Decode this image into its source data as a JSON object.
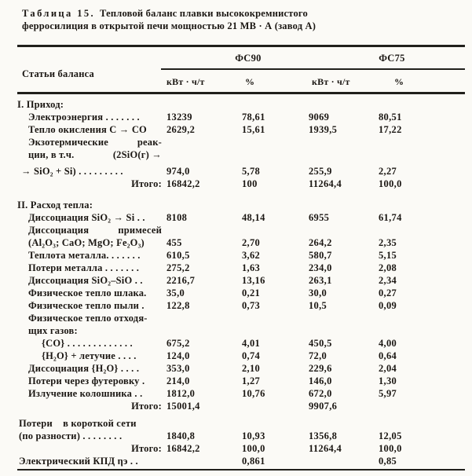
{
  "colors": {
    "paper": "#fbfaf6",
    "ink": "#1b1713"
  },
  "title": {
    "caption_label": "Таблица 15.",
    "line1": "Тепловой баланс плавки высококремнистого",
    "line2": "ферросилиция в открытой печи мощностью 21 МВ · А (завод А)"
  },
  "table": {
    "stub_header": "Статьи баланса",
    "col_groups": [
      "ФС90",
      "ФС75"
    ],
    "sub_headers": [
      "кВт · ч/т",
      "%",
      "кВт · ч/т",
      "%"
    ],
    "rows": [
      {
        "type": "section",
        "label": "I. Приход:"
      },
      {
        "type": "item",
        "label": "Электроэнергия . . . . . . .",
        "v1": "13239",
        "p1": "78,61",
        "v2": "9069",
        "p2": "80,51"
      },
      {
        "type": "item",
        "label": "Тепло окисления С → СО",
        "v1": "2629,2",
        "p1": "15,61",
        "v2": "1939,5",
        "p2": "17,22"
      },
      {
        "type": "item",
        "left": "Экзотермические",
        "right": "реак-"
      },
      {
        "type": "item",
        "left": "ции, в т.ч.",
        "right": "(2SiO(г) →"
      },
      {
        "type": "outdent",
        "label": "→ SiO₂ + Si) . . . . . . . . .",
        "v1": "974,0",
        "p1": "5,78",
        "v2": "255,9",
        "p2": "2,27"
      },
      {
        "type": "total",
        "label": "Итого:",
        "v1": "16842,2",
        "p1": "100",
        "v2": "11264,4",
        "p2": "100,0"
      },
      {
        "type": "section",
        "gap": "lg",
        "label": "II. Расход тепла:"
      },
      {
        "type": "item",
        "label": "Диссоциация SiO₂ → Si . .",
        "v1": "8108",
        "p1": "48,14",
        "v2": "6955",
        "p2": "61,74"
      },
      {
        "type": "item",
        "left": "Диссоциация",
        "right": "примесей"
      },
      {
        "type": "item",
        "label": "(Al₂O₃; CaO; MgO; Fe₂O₃)",
        "v1": "455",
        "p1": "2,70",
        "v2": "264,2",
        "p2": "2,35"
      },
      {
        "type": "item",
        "label": "Теплота металла. . . . . . .",
        "v1": "610,5",
        "p1": "3,62",
        "v2": "580,7",
        "p2": "5,15"
      },
      {
        "type": "item",
        "label": "Потери металла . . . . . . .",
        "v1": "275,2",
        "p1": "1,63",
        "v2": "234,0",
        "p2": "2,08"
      },
      {
        "type": "item",
        "label": "Диссоциация SiO₂–SiO . .",
        "v1": "2216,7",
        "p1": "13,16",
        "v2": "263,1",
        "p2": "2,34"
      },
      {
        "type": "item",
        "label": "Физическое тепло шлака.",
        "v1": "35,0",
        "p1": "0,21",
        "v2": "30,0",
        "p2": "0,27"
      },
      {
        "type": "item",
        "label": "Физическое тепло пыли .",
        "v1": "122,8",
        "p1": "0,73",
        "v2": "10,5",
        "p2": "0,09"
      },
      {
        "type": "item",
        "label": "Физическое тепло отходя-"
      },
      {
        "type": "item",
        "label": "щих газов:"
      },
      {
        "type": "subitem",
        "label": "{CO} . . . . . . . . . . . . .",
        "v1": "675,2",
        "p1": "4,01",
        "v2": "450,5",
        "p2": "4,00",
        "mark": "ˋ"
      },
      {
        "type": "subitem",
        "label": "{H₂O} + летучие . . . .",
        "v1": "124,0",
        "p1": "0,74",
        "v2": "72,0",
        "p2": "0,64"
      },
      {
        "type": "item",
        "label": "Диссоциация {H₂O} . . . .",
        "v1": "353,0",
        "p1": "2,10",
        "v2": "229,6",
        "p2": "2,04"
      },
      {
        "type": "item",
        "label": "Потери через футеровку .",
        "v1": "214,0",
        "p1": "1,27",
        "v2": "146,0",
        "p2": "1,30"
      },
      {
        "type": "item",
        "label": "Излучение колошника . .",
        "v1": "1812,0",
        "p1": "10,76",
        "v2": "672,0",
        "p2": "5,97"
      },
      {
        "type": "total",
        "label": "Итого:",
        "v1": "15001,4",
        "p1": "",
        "v2": "9907,6",
        "p2": ""
      },
      {
        "type": "flush",
        "gap": "sm",
        "label": "Потери    в короткой сети"
      },
      {
        "type": "flush",
        "label": "(по разности) . . . . . . . .",
        "v1": "1840,8",
        "p1": "10,93",
        "v2": "1356,8",
        "p2": "12,05"
      },
      {
        "type": "total",
        "label": "Итого:",
        "v1": "16842,2",
        "p1": "100,0",
        "v2": "11264,4",
        "p2": "100,0"
      },
      {
        "type": "flush",
        "label": "Электрический КПД ηэ . .",
        "v1": "",
        "p1": "0,861",
        "v2": "",
        "p2": "0,85"
      }
    ]
  }
}
